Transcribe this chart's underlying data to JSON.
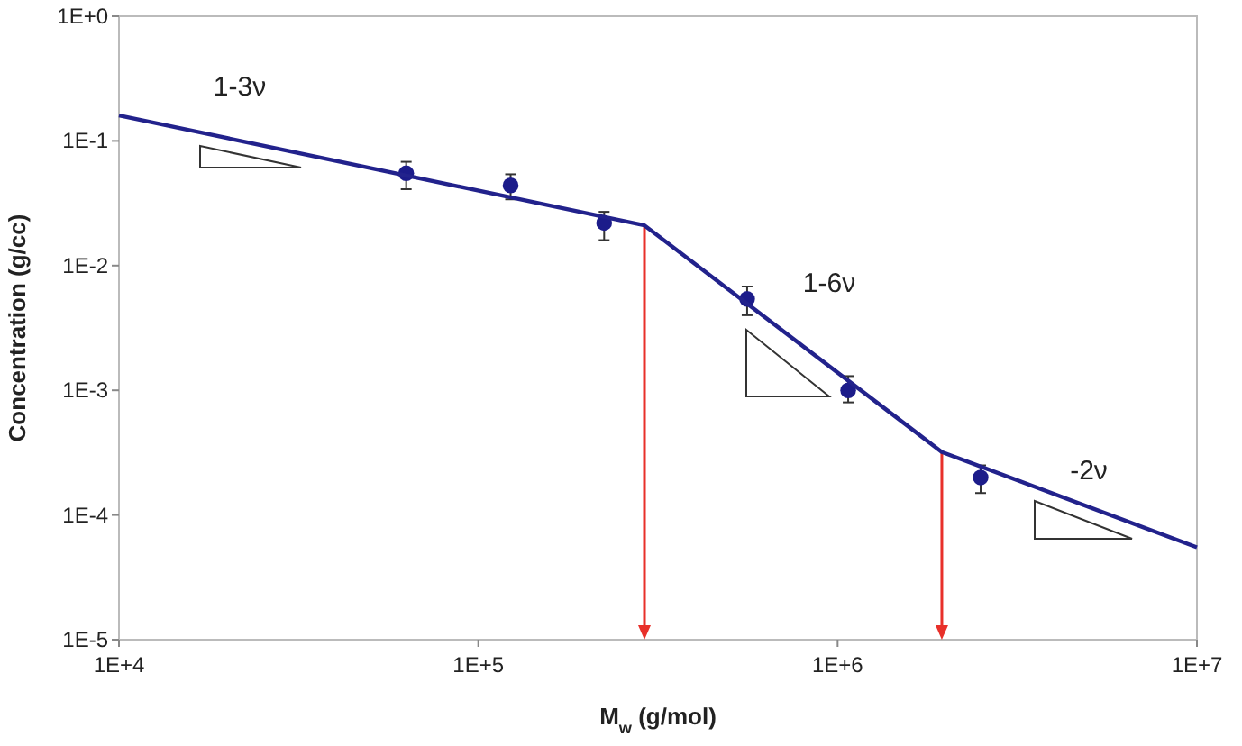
{
  "chart_data": {
    "type": "scatter",
    "xlabel": "M$_{w}$ (g/mol)",
    "ylabel": "Concentration (g/cc)",
    "log": "xy",
    "grid": false,
    "xlim": [
      10000,
      10000000
    ],
    "ylim": [
      1e-05,
      1
    ],
    "xticks": [
      {
        "value": 10000,
        "label": "1E+4"
      },
      {
        "value": 100000,
        "label": "1E+5"
      },
      {
        "value": 1000000,
        "label": "1E+6"
      },
      {
        "value": 10000000,
        "label": "1E+7"
      }
    ],
    "yticks": [
      {
        "value": 1e-05,
        "label": "1E-5"
      },
      {
        "value": 0.0001,
        "label": "1E-4"
      },
      {
        "value": 0.001,
        "label": "1E-3"
      },
      {
        "value": 0.01,
        "label": "1E-2"
      },
      {
        "value": 0.1,
        "label": "1E-1"
      },
      {
        "value": 1,
        "label": "1E+0"
      }
    ],
    "series": [
      {
        "color": "#1c1c8a",
        "marker": "circle",
        "x": [
          63000,
          123000,
          224000,
          560000,
          1070000,
          2500000
        ],
        "values": [
          0.055,
          0.044,
          0.022,
          0.0054,
          0.001,
          0.0002
        ],
        "errors": [
          [
            0.041,
            0.068
          ],
          [
            0.034,
            0.054
          ],
          [
            0.016,
            0.027
          ],
          [
            0.004,
            0.0068
          ],
          [
            0.0008,
            0.0013
          ],
          [
            0.00015,
            0.00025
          ]
        ]
      },
      {
        "type": "line",
        "color": "#22228c",
        "marker": "none",
        "line_style": "solid",
        "x": [
          10000,
          290000,
          1950000,
          10000000
        ],
        "values": [
          0.16,
          0.021,
          0.00032,
          5.5e-05
        ]
      }
    ],
    "ref_lines": [
      {
        "axis": "x",
        "value": 290000,
        "color": "#e8302a"
      },
      {
        "axis": "x",
        "value": 1950000,
        "color": "#e8302a"
      }
    ],
    "annotations": [
      "1-3ν",
      "1-6ν",
      "-2ν"
    ]
  }
}
